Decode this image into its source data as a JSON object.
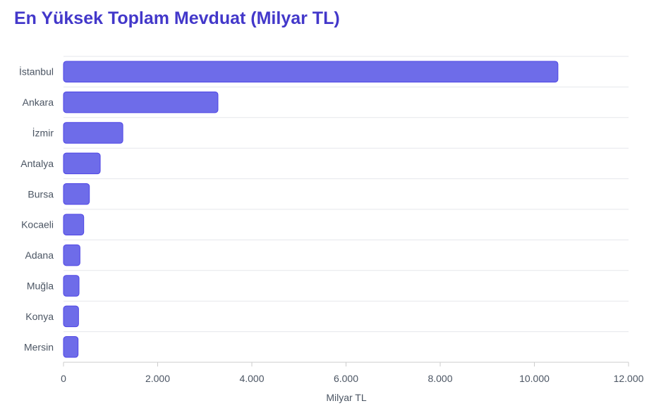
{
  "chart_data": {
    "type": "bar",
    "orientation": "horizontal",
    "title": "En Yüksek Toplam Mevduat (Milyar TL)",
    "xlabel": "Milyar TL",
    "ylabel": "",
    "categories": [
      "İstanbul",
      "Ankara",
      "İzmir",
      "Antalya",
      "Bursa",
      "Kocaeli",
      "Adana",
      "Muğla",
      "Konya",
      "Mersin"
    ],
    "values": [
      10500,
      3280,
      1260,
      780,
      550,
      430,
      350,
      330,
      320,
      310
    ],
    "xlim": [
      0,
      12000
    ],
    "xticks": [
      0,
      2000,
      4000,
      6000,
      8000,
      10000,
      12000
    ],
    "xtick_labels": [
      "0",
      "2.000",
      "4.000",
      "6.000",
      "8.000",
      "10.000",
      "12.000"
    ],
    "grid": "horizontal",
    "bar_color": "#6e6ce9",
    "bar_border_color": "#4f46e5",
    "title_color": "#4338ca"
  }
}
